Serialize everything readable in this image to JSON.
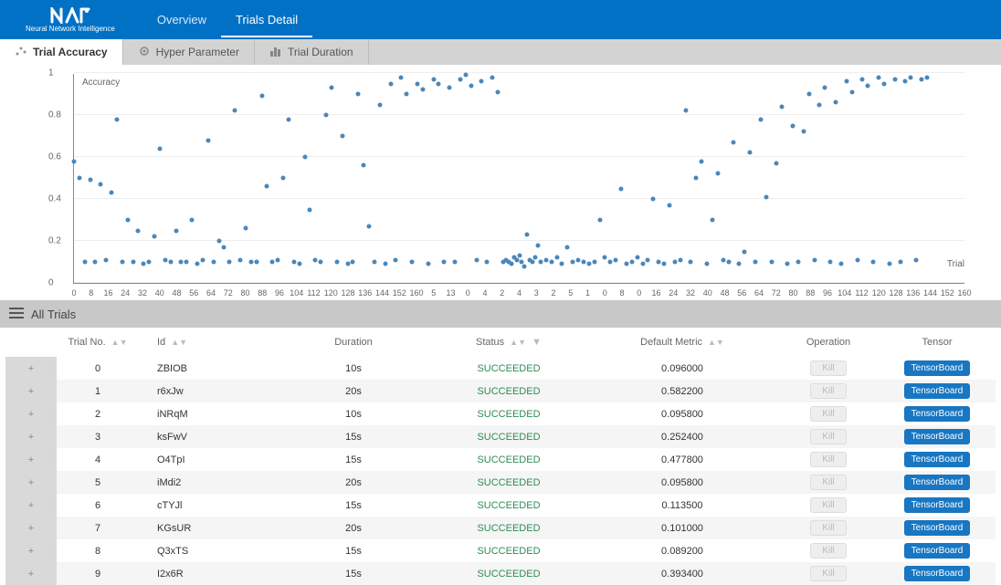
{
  "header": {
    "logo_subtitle": "Neural Network Intelligence",
    "nav": [
      {
        "label": "Overview",
        "active": false
      },
      {
        "label": "Trials Detail",
        "active": true
      }
    ]
  },
  "subnav": [
    {
      "label": "Trial Accuracy",
      "active": true,
      "icon": "scatter-icon"
    },
    {
      "label": "Hyper Parameter",
      "active": false,
      "icon": "gear-icon"
    },
    {
      "label": "Trial Duration",
      "active": false,
      "icon": "bar-icon"
    }
  ],
  "chart": {
    "type": "scatter",
    "ylabel": "Accuracy",
    "xlabel": "Trial",
    "ylim": [
      0,
      1
    ],
    "ytick_step": 0.2,
    "point_color": "#4a87b9",
    "point_radius": 2.5,
    "background_color": "#ffffff",
    "grid_color": "#eeeeee",
    "axis_color": "#888888",
    "label_fontsize": 10,
    "tick_fontsize": 10,
    "xticks": [
      "0",
      "8",
      "16",
      "24",
      "32",
      "40",
      "48",
      "56",
      "64",
      "72",
      "80",
      "88",
      "96",
      "104",
      "112",
      "120",
      "128",
      "136",
      "144",
      "152",
      "160",
      "5",
      "13",
      "0",
      "4",
      "2",
      "4",
      "3",
      "2",
      "5",
      "1",
      "0",
      "8",
      "0",
      "16",
      "24",
      "32",
      "40",
      "48",
      "56",
      "64",
      "72",
      "80",
      "88",
      "96",
      "104",
      "112",
      "120",
      "128",
      "136",
      "144",
      "152",
      "160"
    ],
    "points": [
      [
        0,
        0.58
      ],
      [
        1,
        0.5
      ],
      [
        2,
        0.1
      ],
      [
        3,
        0.49
      ],
      [
        4,
        0.1
      ],
      [
        5,
        0.47
      ],
      [
        6,
        0.11
      ],
      [
        7,
        0.43
      ],
      [
        8,
        0.78
      ],
      [
        9,
        0.1
      ],
      [
        10,
        0.3
      ],
      [
        11,
        0.1
      ],
      [
        12,
        0.25
      ],
      [
        13,
        0.09
      ],
      [
        14,
        0.1
      ],
      [
        15,
        0.22
      ],
      [
        16,
        0.64
      ],
      [
        17,
        0.11
      ],
      [
        18,
        0.1
      ],
      [
        19,
        0.25
      ],
      [
        20,
        0.1
      ],
      [
        21,
        0.1
      ],
      [
        22,
        0.3
      ],
      [
        23,
        0.09
      ],
      [
        24,
        0.11
      ],
      [
        25,
        0.68
      ],
      [
        26,
        0.1
      ],
      [
        27,
        0.2
      ],
      [
        28,
        0.17
      ],
      [
        29,
        0.1
      ],
      [
        30,
        0.82
      ],
      [
        31,
        0.11
      ],
      [
        32,
        0.26
      ],
      [
        33,
        0.1
      ],
      [
        34,
        0.1
      ],
      [
        35,
        0.89
      ],
      [
        36,
        0.46
      ],
      [
        37,
        0.1
      ],
      [
        38,
        0.11
      ],
      [
        39,
        0.5
      ],
      [
        40,
        0.78
      ],
      [
        41,
        0.1
      ],
      [
        42,
        0.09
      ],
      [
        43,
        0.6
      ],
      [
        44,
        0.35
      ],
      [
        45,
        0.11
      ],
      [
        46,
        0.1
      ],
      [
        47,
        0.8
      ],
      [
        48,
        0.93
      ],
      [
        49,
        0.1
      ],
      [
        50,
        0.7
      ],
      [
        51,
        0.09
      ],
      [
        52,
        0.1
      ],
      [
        53,
        0.9
      ],
      [
        54,
        0.56
      ],
      [
        55,
        0.27
      ],
      [
        56,
        0.1
      ],
      [
        57,
        0.85
      ],
      [
        58,
        0.09
      ],
      [
        59,
        0.95
      ],
      [
        60,
        0.11
      ],
      [
        61,
        0.98
      ],
      [
        62,
        0.9
      ],
      [
        63,
        0.1
      ],
      [
        64,
        0.95
      ],
      [
        65,
        0.92
      ],
      [
        66,
        0.09
      ],
      [
        67,
        0.97
      ],
      [
        68,
        0.95
      ],
      [
        69,
        0.1
      ],
      [
        70,
        0.93
      ],
      [
        71,
        0.1
      ],
      [
        72,
        0.97
      ],
      [
        73,
        0.99
      ],
      [
        74,
        0.94
      ],
      [
        75,
        0.11
      ],
      [
        76,
        0.96
      ],
      [
        77,
        0.1
      ],
      [
        78,
        0.98
      ],
      [
        79,
        0.91
      ],
      [
        80,
        0.1
      ],
      [
        80.5,
        0.11
      ],
      [
        81,
        0.1
      ],
      [
        81.5,
        0.09
      ],
      [
        82,
        0.12
      ],
      [
        82.5,
        0.11
      ],
      [
        83,
        0.13
      ],
      [
        83.5,
        0.1
      ],
      [
        84,
        0.08
      ],
      [
        84.5,
        0.23
      ],
      [
        85,
        0.11
      ],
      [
        85.5,
        0.1
      ],
      [
        86,
        0.12
      ],
      [
        86.5,
        0.18
      ],
      [
        87,
        0.1
      ],
      [
        88,
        0.11
      ],
      [
        89,
        0.1
      ],
      [
        90,
        0.12
      ],
      [
        91,
        0.09
      ],
      [
        92,
        0.17
      ],
      [
        93,
        0.1
      ],
      [
        94,
        0.11
      ],
      [
        95,
        0.1
      ],
      [
        96,
        0.09
      ],
      [
        97,
        0.1
      ],
      [
        98,
        0.3
      ],
      [
        99,
        0.12
      ],
      [
        100,
        0.1
      ],
      [
        101,
        0.11
      ],
      [
        102,
        0.45
      ],
      [
        103,
        0.09
      ],
      [
        104,
        0.1
      ],
      [
        105,
        0.12
      ],
      [
        106,
        0.09
      ],
      [
        107,
        0.11
      ],
      [
        108,
        0.4
      ],
      [
        109,
        0.1
      ],
      [
        110,
        0.09
      ],
      [
        111,
        0.37
      ],
      [
        112,
        0.1
      ],
      [
        113,
        0.11
      ],
      [
        114,
        0.82
      ],
      [
        115,
        0.1
      ],
      [
        116,
        0.5
      ],
      [
        117,
        0.58
      ],
      [
        118,
        0.09
      ],
      [
        119,
        0.3
      ],
      [
        120,
        0.52
      ],
      [
        121,
        0.11
      ],
      [
        122,
        0.1
      ],
      [
        123,
        0.67
      ],
      [
        124,
        0.09
      ],
      [
        125,
        0.15
      ],
      [
        126,
        0.62
      ],
      [
        127,
        0.1
      ],
      [
        128,
        0.78
      ],
      [
        129,
        0.41
      ],
      [
        130,
        0.1
      ],
      [
        131,
        0.57
      ],
      [
        132,
        0.84
      ],
      [
        133,
        0.09
      ],
      [
        134,
        0.75
      ],
      [
        135,
        0.1
      ],
      [
        136,
        0.72
      ],
      [
        137,
        0.9
      ],
      [
        138,
        0.11
      ],
      [
        139,
        0.85
      ],
      [
        140,
        0.93
      ],
      [
        141,
        0.1
      ],
      [
        142,
        0.86
      ],
      [
        143,
        0.09
      ],
      [
        144,
        0.96
      ],
      [
        145,
        0.91
      ],
      [
        146,
        0.11
      ],
      [
        147,
        0.97
      ],
      [
        148,
        0.94
      ],
      [
        149,
        0.1
      ],
      [
        150,
        0.98
      ],
      [
        151,
        0.95
      ],
      [
        152,
        0.09
      ],
      [
        153,
        0.97
      ],
      [
        154,
        0.1
      ],
      [
        155,
        0.96
      ],
      [
        156,
        0.98
      ],
      [
        157,
        0.11
      ],
      [
        158,
        0.97
      ],
      [
        159,
        0.98
      ]
    ]
  },
  "section_title": "All Trials",
  "table": {
    "columns": [
      "",
      "Trial No.",
      "Id",
      "Duration",
      "Status",
      "Default Metric",
      "Operation",
      "Tensor"
    ],
    "kill_label": "Kill",
    "tensor_label": "TensorBoard",
    "status_color": "#2e8b57",
    "rows": [
      {
        "no": "0",
        "id": "ZBIOB",
        "duration": "10s",
        "status": "SUCCEEDED",
        "metric": "0.096000"
      },
      {
        "no": "1",
        "id": "r6xJw",
        "duration": "20s",
        "status": "SUCCEEDED",
        "metric": "0.582200"
      },
      {
        "no": "2",
        "id": "iNRqM",
        "duration": "10s",
        "status": "SUCCEEDED",
        "metric": "0.095800"
      },
      {
        "no": "3",
        "id": "ksFwV",
        "duration": "15s",
        "status": "SUCCEEDED",
        "metric": "0.252400"
      },
      {
        "no": "4",
        "id": "O4TpI",
        "duration": "15s",
        "status": "SUCCEEDED",
        "metric": "0.477800"
      },
      {
        "no": "5",
        "id": "iMdi2",
        "duration": "20s",
        "status": "SUCCEEDED",
        "metric": "0.095800"
      },
      {
        "no": "6",
        "id": "cTYJl",
        "duration": "15s",
        "status": "SUCCEEDED",
        "metric": "0.113500"
      },
      {
        "no": "7",
        "id": "KGsUR",
        "duration": "20s",
        "status": "SUCCEEDED",
        "metric": "0.101000"
      },
      {
        "no": "8",
        "id": "Q3xTS",
        "duration": "15s",
        "status": "SUCCEEDED",
        "metric": "0.089200"
      },
      {
        "no": "9",
        "id": "I2x6R",
        "duration": "15s",
        "status": "SUCCEEDED",
        "metric": "0.393400"
      }
    ]
  }
}
